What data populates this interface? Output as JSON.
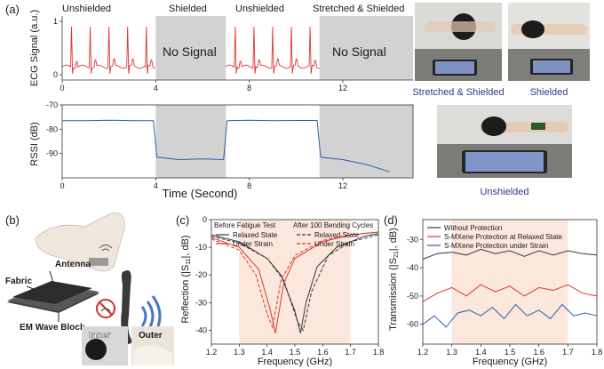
{
  "panel_labels": {
    "a": "(a)",
    "b": "(b)",
    "c": "(c)",
    "d": "(d)"
  },
  "panel_a": {
    "segment_labels": [
      "Unshielded",
      "Shielded",
      "Unshielded",
      "Stretched & Shielded"
    ],
    "no_signal": "No Signal",
    "ecg_ylabel": "ECG Signal (a.u.)",
    "rssi_ylabel": "RSSI (dB)",
    "time_xlabel": "Time (Second)",
    "photo_captions": {
      "stretched": "Stretched & Shielded",
      "shielded": "Shielded",
      "unshielded": "Unshielded"
    }
  },
  "panel_b": {
    "labels": {
      "antenna": "Antenna",
      "fabric": "Fabric",
      "em_block": "EM Wave Block",
      "inner": "Inner",
      "outer": "Outer"
    }
  },
  "panel_c": {
    "legend_head_left": "Before Fatigue Test",
    "legend_head_right": "After 100 Bending Cycles",
    "legend": [
      "Relaxed State",
      "Under Strain",
      "Relaxed State",
      "Under Strain"
    ]
  },
  "panel_d": {
    "legend": [
      "Without Protection",
      "S-MXene Protection at Relaxed State",
      "S-MXene Protection under Strain"
    ]
  },
  "colors": {
    "red": "#e0362c",
    "blue": "#2b5fad",
    "dark": "#3a3a3a",
    "shade": "#d2d2d2",
    "pink": "#fbe7dc",
    "caption": "#2a3a8c"
  },
  "chart_data": [
    {
      "type": "line",
      "name": "ecg",
      "ylabel": "ECG Signal (a.u.)",
      "x_ticks": [
        0,
        4,
        8,
        12
      ],
      "y_ticks": [
        0,
        1
      ],
      "xlim": [
        0,
        15
      ],
      "ylim": [
        -0.1,
        1.1
      ],
      "shaded_ranges": [
        [
          4,
          7
        ],
        [
          11,
          15
        ]
      ],
      "signal_ranges": [
        [
          0,
          4
        ],
        [
          7,
          11
        ]
      ],
      "beats_per_second": 1.25,
      "baseline": 0.15,
      "peak": 0.9
    },
    {
      "type": "line",
      "name": "rssi",
      "ylabel": "RSSI (dB)",
      "x_ticks": [
        0,
        4,
        8,
        12
      ],
      "y_ticks": [
        -70,
        -80,
        -90
      ],
      "xlim": [
        0,
        15
      ],
      "ylim": [
        -100,
        -70
      ],
      "shaded_ranges": [
        [
          4,
          7
        ],
        [
          11,
          15
        ]
      ],
      "series": [
        {
          "x": [
            0,
            1,
            2,
            3,
            3.9,
            4.05,
            5,
            6,
            6.9,
            7.05,
            8,
            9,
            10,
            10.9,
            11.05,
            12,
            13,
            14
          ],
          "y": [
            -76.5,
            -76.5,
            -76.3,
            -76.5,
            -76.5,
            -91.5,
            -92.5,
            -92.2,
            -92.5,
            -76.5,
            -76.3,
            -76.5,
            -76.4,
            -76.4,
            -91.5,
            -92.5,
            -94.5,
            -97.5
          ]
        }
      ]
    },
    {
      "type": "line",
      "name": "reflection",
      "xlabel": "Frequency (GHz)",
      "ylabel": "Reflection (|S11|, dB)",
      "xlim": [
        1.2,
        1.8
      ],
      "ylim": [
        -45,
        0
      ],
      "x_ticks": [
        1.2,
        1.3,
        1.4,
        1.5,
        1.6,
        1.7,
        1.8
      ],
      "y_ticks": [
        0,
        -10,
        -20,
        -30,
        -40
      ],
      "shaded_x": [
        1.3,
        1.7
      ],
      "series": [
        {
          "style": "solid",
          "color": "dark",
          "x": [
            1.2,
            1.3,
            1.4,
            1.45,
            1.5,
            1.52,
            1.54,
            1.58,
            1.65,
            1.75,
            1.8
          ],
          "y": [
            -5.5,
            -8,
            -14,
            -20,
            -33,
            -41,
            -30,
            -17,
            -10,
            -6,
            -5
          ]
        },
        {
          "style": "solid",
          "color": "red",
          "x": [
            1.2,
            1.3,
            1.37,
            1.41,
            1.43,
            1.46,
            1.5,
            1.6,
            1.7,
            1.8
          ],
          "y": [
            -6.5,
            -10,
            -18,
            -32,
            -41,
            -23,
            -14,
            -8,
            -5.5,
            -4.5
          ]
        },
        {
          "style": "dashed",
          "color": "dark",
          "x": [
            1.2,
            1.3,
            1.4,
            1.46,
            1.51,
            1.53,
            1.56,
            1.62,
            1.7,
            1.8
          ],
          "y": [
            -6,
            -8.5,
            -14,
            -22,
            -37,
            -40,
            -26,
            -13,
            -8,
            -5.5
          ]
        },
        {
          "style": "dashed",
          "color": "red",
          "x": [
            1.2,
            1.3,
            1.36,
            1.4,
            1.42,
            1.45,
            1.5,
            1.6,
            1.7,
            1.8
          ],
          "y": [
            -7,
            -11,
            -20,
            -34,
            -39,
            -22,
            -13,
            -7.5,
            -5.5,
            -4.5
          ]
        }
      ]
    },
    {
      "type": "line",
      "name": "transmission",
      "xlabel": "Frequency (GHz)",
      "ylabel": "Transmission (|S21|, dB)",
      "xlim": [
        1.2,
        1.8
      ],
      "ylim": [
        -67,
        -23
      ],
      "x_ticks": [
        1.2,
        1.3,
        1.4,
        1.5,
        1.6,
        1.7,
        1.8
      ],
      "y_ticks": [
        -30,
        -40,
        -50,
        -60
      ],
      "shaded_x": [
        1.3,
        1.7
      ],
      "series": [
        {
          "color": "dark",
          "x": [
            1.2,
            1.25,
            1.3,
            1.35,
            1.4,
            1.45,
            1.5,
            1.55,
            1.6,
            1.65,
            1.7,
            1.75,
            1.8
          ],
          "y": [
            -37,
            -35,
            -34.5,
            -35.5,
            -33.5,
            -35,
            -34,
            -36,
            -34,
            -35.5,
            -34,
            -35,
            -35.5
          ]
        },
        {
          "color": "red",
          "x": [
            1.2,
            1.25,
            1.3,
            1.35,
            1.4,
            1.45,
            1.5,
            1.55,
            1.6,
            1.65,
            1.7,
            1.75,
            1.8
          ],
          "y": [
            -52,
            -49,
            -47,
            -50,
            -46,
            -48.5,
            -46.5,
            -50,
            -47,
            -48,
            -46,
            -49,
            -50
          ]
        },
        {
          "color": "blue",
          "x": [
            1.2,
            1.24,
            1.28,
            1.32,
            1.36,
            1.4,
            1.44,
            1.48,
            1.52,
            1.56,
            1.6,
            1.64,
            1.68,
            1.72,
            1.76,
            1.8
          ],
          "y": [
            -60,
            -57,
            -61,
            -56,
            -55,
            -57,
            -54,
            -58,
            -53,
            -57,
            -55,
            -58,
            -53,
            -57,
            -56,
            -57
          ]
        }
      ]
    }
  ]
}
